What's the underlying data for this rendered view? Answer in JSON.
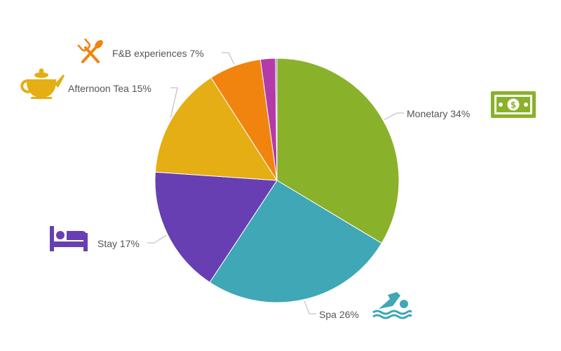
{
  "chart_data": {
    "type": "pie",
    "title": "",
    "slices": [
      {
        "label": "Monetary",
        "value": 34,
        "display": "34%",
        "color": "#8ab12a",
        "icon": "banknote-icon"
      },
      {
        "label": "Spa",
        "value": 26,
        "display": "26%",
        "color": "#3fa7b5",
        "icon": "swimmer-icon"
      },
      {
        "label": "Stay",
        "value": 17,
        "display": "17%",
        "color": "#673fb3",
        "icon": "bed-icon"
      },
      {
        "label": "Afternoon Tea",
        "value": 15,
        "display": "15%",
        "color": "#e4ae14",
        "icon": "teapot-icon"
      },
      {
        "label": "F&B experiences",
        "value": 7,
        "display": "7%",
        "color": "#f1830f",
        "icon": "fork-spoon-icon"
      },
      {
        "label": "",
        "value": 2,
        "display": "",
        "color": "#b43aa9",
        "icon": ""
      },
      {
        "label": "",
        "value": 0.2,
        "display": "",
        "color": "#7d6fb5",
        "icon": ""
      }
    ]
  }
}
